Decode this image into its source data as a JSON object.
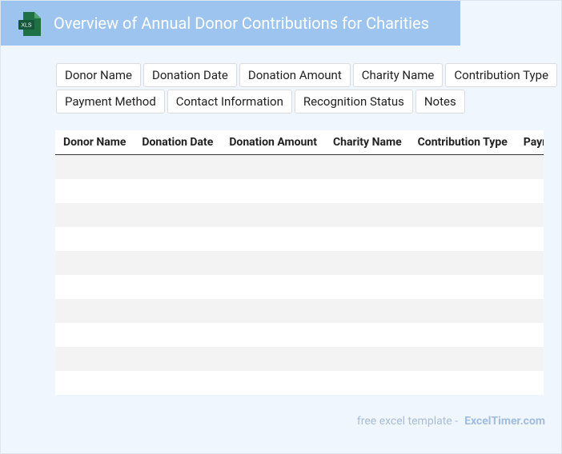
{
  "icon": {
    "label": "XLS"
  },
  "header": {
    "title": "Overview of Annual Donor Contributions for Charities"
  },
  "tags": [
    "Donor Name",
    "Donation Date",
    "Donation Amount",
    "Charity Name",
    "Contribution Type",
    "Payment Method",
    "Contact Information",
    "Recognition Status",
    "Notes"
  ],
  "table": {
    "columns": [
      "Donor Name",
      "Donation Date",
      "Donation Amount",
      "Charity Name",
      "Contribution Type",
      "Payment Method"
    ]
  },
  "footer": {
    "prefix": "free excel template -",
    "brand": "ExcelTimer.com"
  }
}
